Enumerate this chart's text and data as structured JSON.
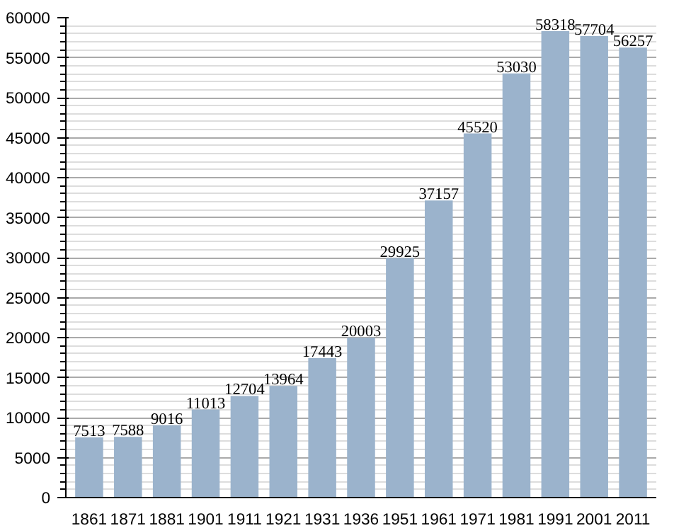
{
  "chart_data": {
    "type": "bar",
    "categories": [
      "1861",
      "1871",
      "1881",
      "1901",
      "1911",
      "1921",
      "1931",
      "1936",
      "1951",
      "1961",
      "1971",
      "1981",
      "1991",
      "2001",
      "2011"
    ],
    "values": [
      7513,
      7588,
      9016,
      11013,
      12704,
      13964,
      17443,
      20003,
      29925,
      37157,
      45520,
      53030,
      58318,
      57704,
      56257
    ],
    "color": "#9bb3cc",
    "ylim": [
      0,
      60000
    ],
    "yticks": [
      0,
      5000,
      10000,
      15000,
      20000,
      25000,
      30000,
      35000,
      40000,
      45000,
      50000,
      55000,
      60000
    ],
    "grid": "y",
    "data_labels": true
  }
}
